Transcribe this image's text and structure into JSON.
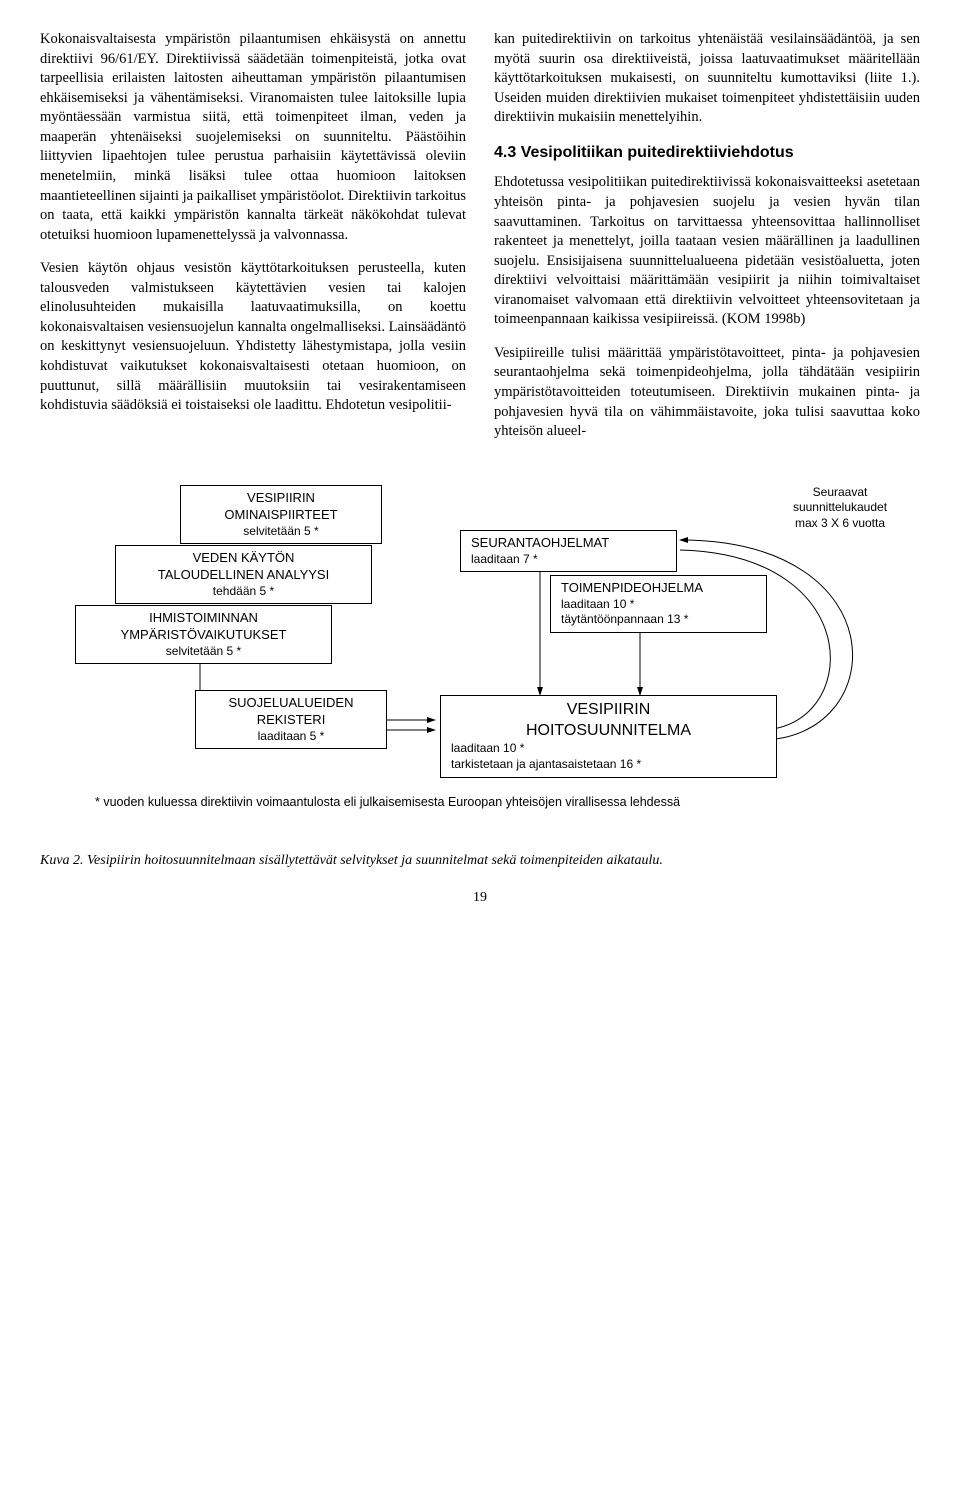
{
  "left": {
    "p1": "Kokonaisvaltaisesta ympäristön pilaantumisen ehkäisystä on annettu direktiivi 96/61/EY. Direktiivissä säädetään toimenpiteistä, jotka ovat tarpeellisia erilaisten laitosten aiheuttaman ympäristön pilaantumisen ehkäisemiseksi ja vähentämiseksi. Viranomaisten tulee laitoksille lupia myöntäessään varmistua siitä, että toimenpiteet ilman, veden ja maaperän yhtenäiseksi suojelemiseksi on suunniteltu. Päästöihin liittyvien lipaehtojen tulee perustua parhaisiin käytettävissä oleviin menetelmiin, minkä lisäksi tulee ottaa huomioon laitoksen maantieteellinen sijainti ja paikalliset ympäristöolot. Direktiivin tarkoitus on taata, että kaikki ympäristön kannalta tärkeät näkökohdat tulevat otetuiksi huomioon lupamenettelyssä ja valvonnassa.",
    "p2": "Vesien käytön ohjaus vesistön käyttötarkoituksen perusteella, kuten talousveden valmistukseen käytettävien vesien tai kalojen elinolusuhteiden mukaisilla laatuvaatimuksilla, on koettu kokonaisvaltaisen vesiensuojelun kannalta ongelmalliseksi. Lainsäädäntö on keskittynyt vesiensuojeluun. Yhdistetty lähestymistapa, jolla vesiin kohdistuvat vaikutukset kokonaisvaltaisesti otetaan huomioon, on puuttunut, sillä määrällisiin muutoksiin tai vesirakentamiseen kohdistuvia säädöksiä ei toistaiseksi ole laadittu. Ehdotetun vesipolitii-"
  },
  "right": {
    "p1": "kan puitedirektiivin on tarkoitus yhtenäistää vesilainsäädäntöä, ja sen myötä suurin osa direktiiveistä, joissa laatuvaatimukset määritellään käyttötarkoituksen mukaisesti, on suunniteltu kumottaviksi (liite 1.). Useiden muiden direktiivien mukaiset toimenpiteet yhdistettäisiin uuden direktiivin mukaisiin menettelyihin.",
    "heading": "4.3 Vesipolitiikan puitedirektiiviehdotus",
    "p2": "Ehdotetussa vesipolitiikan puitedirektiivissä kokonaisvaitteeksi asetetaan yhteisön pinta- ja pohjavesien suojelu ja vesien hyvän tilan saavuttaminen. Tarkoitus on tarvittaessa yhteensovittaa hallinnolliset rakenteet ja menettelyt, joilla taataan vesien määrällinen ja laadullinen suojelu. Ensisijaisena suunnittelualueena pidetään vesistöaluetta, joten direktiivi velvoittaisi määrittämään vesipiirit ja niihin toimivaltaiset viranomaiset valvomaan että direktiivin velvoitteet yhteensovitetaan ja toimeenpannaan kaikissa vesipiireissä. (KOM 1998b)",
    "p3": "Vesipiireille tulisi määrittää ympäristötavoitteet, pinta- ja pohjavesien seurantaohjelma sekä toimenpideohjelma, jolla tähdätään vesipiirin ympäristötavoitteiden toteutumiseen. Direktiivin mukainen pinta- ja pohjavesien hyvä tila on vähimmäistavoite, joka tulisi saavuttaa koko yhteisön alueel-"
  },
  "diagram": {
    "boxes": {
      "ominaispiirteet": {
        "title": "VESIPIIRIN\nOMINAISPIIRTEET",
        "sub": "selvitetään 5 *"
      },
      "taloudellinen": {
        "title": "VEDEN KÄYTÖN\nTALOUDELLINEN ANALYYSI",
        "sub": "tehdään 5 *"
      },
      "ihmistoiminta": {
        "title": "IHMISTOIMINNAN\nYMPÄRISTÖVAIKUTUKSET",
        "sub": "selvitetään 5 *"
      },
      "suojelualueiden": {
        "title": "SUOJELUALUEIDEN\nREKISTERI",
        "sub": "laaditaan 5 *"
      },
      "seuranta": {
        "title": "SEURANTAOHJELMAT",
        "sub": "laaditaan 7 *"
      },
      "toimenpide": {
        "title": "TOIMENPIDEOHJELMA",
        "sub": "laaditaan 10 *\ntäytäntöönpannaan 13 *"
      },
      "hoitosuunnitelma": {
        "title": "VESIPIIRIN\nHOITOSUUNNITELMA",
        "sub": "laaditaan 10 *\ntarkistetaan ja ajantasaistetaan 16 *"
      }
    },
    "sidenote": "Seuraavat\nsuunnittelukaudet\nmax 3 X 6 vuotta",
    "footnote": "* vuoden kuluessa direktiivin voimaantulosta eli julkaisemisesta Euroopan yhteisöjen virallisessa lehdessä",
    "colors": {
      "stroke": "#000000",
      "bg": "#ffffff"
    }
  },
  "caption": "Kuva 2. Vesipiirin hoitosuunnitelmaan sisällytettävät selvitykset ja suunnitelmat sekä toimenpiteiden aikataulu.",
  "pagenum": "19"
}
